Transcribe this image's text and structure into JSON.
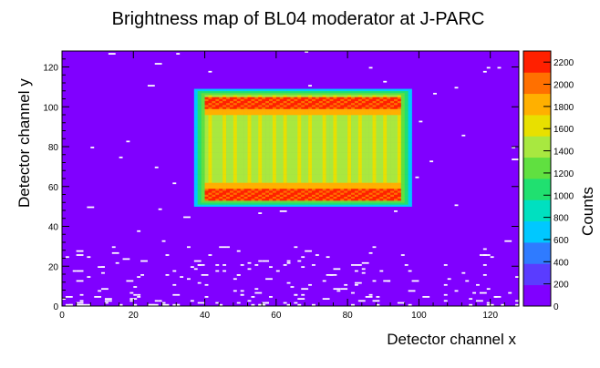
{
  "chart_data": {
    "type": "heatmap",
    "title": "Brightness map of BL04 moderator at J-PARC",
    "xlabel": "Detector channel x",
    "ylabel": "Detector channel y",
    "zlabel": "Counts",
    "xlim": [
      0,
      128
    ],
    "ylim": [
      0,
      128
    ],
    "zlim": [
      0,
      2300
    ],
    "x_ticks": [
      0,
      20,
      40,
      60,
      80,
      100,
      120
    ],
    "y_ticks": [
      0,
      20,
      40,
      60,
      80,
      100,
      120
    ],
    "z_ticks": [
      0,
      200,
      400,
      600,
      800,
      1000,
      1200,
      1400,
      1600,
      1800,
      2000,
      2200
    ],
    "background_counts": 150,
    "bright_region": {
      "x_range": [
        37,
        98
      ],
      "y_range": [
        50,
        109
      ],
      "edge_counts": 700,
      "center_counts": 1350,
      "hot_band_bottom_y": [
        51,
        58
      ],
      "hot_band_top_y": [
        99,
        104
      ],
      "hot_band_counts": 2050
    },
    "noise_pixel_counts": 0,
    "colorscale": [
      "#8000ff",
      "#5a3cff",
      "#2f7bff",
      "#00c8ff",
      "#00e0c0",
      "#20e070",
      "#60e040",
      "#a8e840",
      "#e8e000",
      "#ffb000",
      "#ff7000",
      "#ff2000"
    ]
  }
}
